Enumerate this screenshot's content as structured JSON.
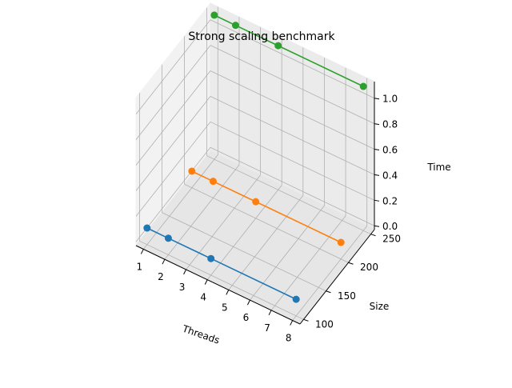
{
  "chart_data": {
    "type": "line",
    "projection": "3d",
    "title": "Strong scaling benchmark",
    "xlabel": "Threads",
    "ylabel": "Size",
    "zlabel": "Time",
    "xlim": [
      1,
      8
    ],
    "ylim": [
      100,
      250
    ],
    "zlim": [
      0,
      1.0
    ],
    "x_ticks": [
      "1",
      "2",
      "3",
      "4",
      "5",
      "6",
      "7",
      "8"
    ],
    "y_ticks": [
      "100",
      "150",
      "200",
      "250"
    ],
    "z_ticks": [
      "0.0",
      "0.2",
      "0.4",
      "0.6",
      "0.8",
      "1.0"
    ],
    "series": [
      {
        "color": "#1f77b4",
        "size": 100,
        "x": [
          1,
          2,
          4,
          8
        ],
        "z": [
          0.1,
          0.1,
          0.1,
          0.1
        ]
      },
      {
        "color": "#ff7f0e",
        "size": 200,
        "x": [
          1,
          2,
          4,
          8
        ],
        "z": [
          0.1,
          0.1,
          0.1,
          0.1
        ]
      },
      {
        "color": "#2ca02c",
        "size": 250,
        "x": [
          1,
          2,
          4,
          8
        ],
        "z": [
          1.1,
          1.1,
          1.1,
          1.1
        ]
      }
    ],
    "grid": true,
    "marker": "circle"
  }
}
